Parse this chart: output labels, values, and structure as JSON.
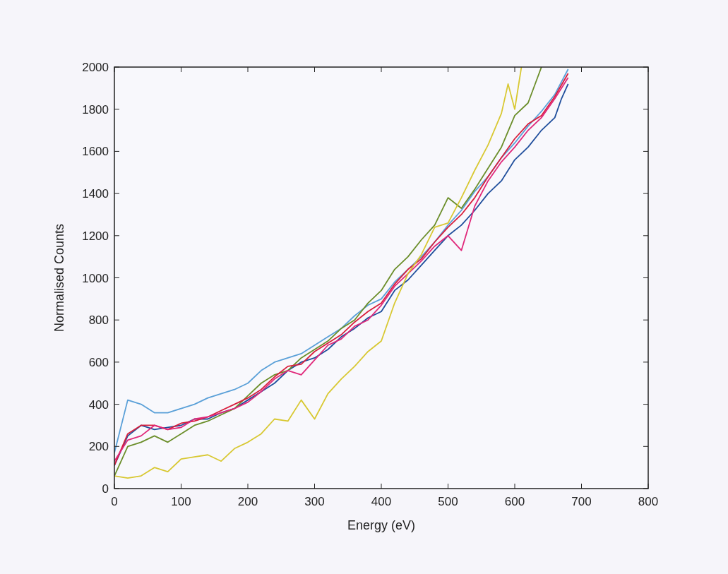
{
  "chart_data": {
    "type": "line",
    "xlabel": "Energy (eV)",
    "ylabel": "Normalised Counts",
    "xlim": [
      0,
      800
    ],
    "ylim": [
      0,
      2000
    ],
    "xticks": [
      0,
      100,
      200,
      300,
      400,
      500,
      600,
      700,
      800
    ],
    "yticks": [
      0,
      200,
      400,
      600,
      800,
      1000,
      1200,
      1400,
      1600,
      1800,
      2000
    ],
    "grid": false,
    "marker": "none",
    "line_style": "solid",
    "series": [
      {
        "color": "#5aa0d8",
        "x": [
          0,
          20,
          40,
          60,
          80,
          100,
          120,
          140,
          160,
          180,
          200,
          220,
          240,
          260,
          280,
          300,
          320,
          340,
          360,
          380,
          400,
          420,
          440,
          460,
          480,
          500,
          520,
          540,
          560,
          580,
          600,
          620,
          640,
          660,
          680
        ],
        "values": [
          170,
          420,
          400,
          360,
          360,
          380,
          400,
          430,
          450,
          470,
          500,
          560,
          600,
          620,
          640,
          680,
          720,
          760,
          820,
          870,
          900,
          980,
          1040,
          1100,
          1170,
          1250,
          1320,
          1410,
          1480,
          1570,
          1640,
          1720,
          1790,
          1870,
          1990
        ]
      },
      {
        "color": "#1f4e9c",
        "x": [
          0,
          20,
          40,
          60,
          80,
          100,
          120,
          140,
          160,
          180,
          200,
          220,
          240,
          260,
          280,
          300,
          320,
          340,
          360,
          380,
          400,
          420,
          440,
          460,
          480,
          500,
          520,
          540,
          560,
          580,
          600,
          620,
          640,
          660,
          670,
          680
        ],
        "values": [
          110,
          250,
          300,
          280,
          290,
          300,
          330,
          330,
          360,
          380,
          420,
          460,
          500,
          560,
          600,
          620,
          660,
          720,
          760,
          810,
          840,
          940,
          990,
          1060,
          1130,
          1200,
          1250,
          1320,
          1400,
          1460,
          1560,
          1620,
          1700,
          1760,
          1850,
          1920
        ]
      },
      {
        "color": "#6b8e2a",
        "x": [
          0,
          20,
          40,
          60,
          80,
          100,
          120,
          140,
          160,
          180,
          200,
          220,
          240,
          260,
          280,
          300,
          320,
          340,
          360,
          380,
          400,
          420,
          440,
          460,
          480,
          500,
          520,
          540,
          560,
          580,
          600,
          620,
          640
        ],
        "values": [
          60,
          200,
          220,
          250,
          220,
          260,
          300,
          320,
          350,
          380,
          440,
          500,
          540,
          560,
          620,
          660,
          700,
          760,
          800,
          880,
          940,
          1040,
          1100,
          1180,
          1250,
          1380,
          1330,
          1420,
          1520,
          1620,
          1770,
          1830,
          2000
        ]
      },
      {
        "color": "#d81e3c",
        "x": [
          0,
          20,
          40,
          60,
          80,
          100,
          120,
          140,
          160,
          180,
          200,
          220,
          240,
          260,
          280,
          300,
          320,
          340,
          360,
          380,
          400,
          420,
          440,
          460,
          480,
          500,
          520,
          540,
          560,
          580,
          600,
          620,
          640,
          660,
          680
        ],
        "values": [
          110,
          260,
          300,
          300,
          280,
          310,
          320,
          340,
          370,
          400,
          430,
          470,
          530,
          580,
          590,
          650,
          690,
          730,
          790,
          840,
          880,
          970,
          1040,
          1090,
          1170,
          1240,
          1300,
          1380,
          1480,
          1570,
          1660,
          1730,
          1770,
          1860,
          1970
        ]
      },
      {
        "color": "#e0287a",
        "x": [
          0,
          20,
          40,
          60,
          80,
          100,
          120,
          140,
          160,
          180,
          200,
          220,
          240,
          260,
          280,
          300,
          320,
          340,
          360,
          380,
          400,
          420,
          440,
          460,
          480,
          500,
          520,
          540,
          560,
          580,
          600,
          620,
          640,
          660,
          680
        ],
        "values": [
          130,
          230,
          250,
          300,
          280,
          290,
          330,
          340,
          360,
          380,
          410,
          460,
          520,
          560,
          540,
          610,
          680,
          710,
          770,
          800,
          870,
          960,
          1020,
          1080,
          1150,
          1200,
          1130,
          1340,
          1460,
          1550,
          1620,
          1700,
          1760,
          1850,
          1950
        ]
      },
      {
        "color": "#d8c832",
        "x": [
          0,
          20,
          40,
          60,
          80,
          100,
          120,
          140,
          160,
          180,
          200,
          220,
          240,
          260,
          280,
          300,
          320,
          340,
          360,
          380,
          400,
          420,
          440,
          460,
          480,
          500,
          520,
          540,
          560,
          580,
          590,
          600,
          610
        ],
        "values": [
          60,
          50,
          60,
          100,
          80,
          140,
          150,
          160,
          130,
          190,
          220,
          260,
          330,
          320,
          420,
          330,
          450,
          520,
          580,
          650,
          700,
          880,
          1020,
          1110,
          1240,
          1260,
          1380,
          1510,
          1630,
          1780,
          1920,
          1800,
          2000
        ]
      }
    ]
  }
}
